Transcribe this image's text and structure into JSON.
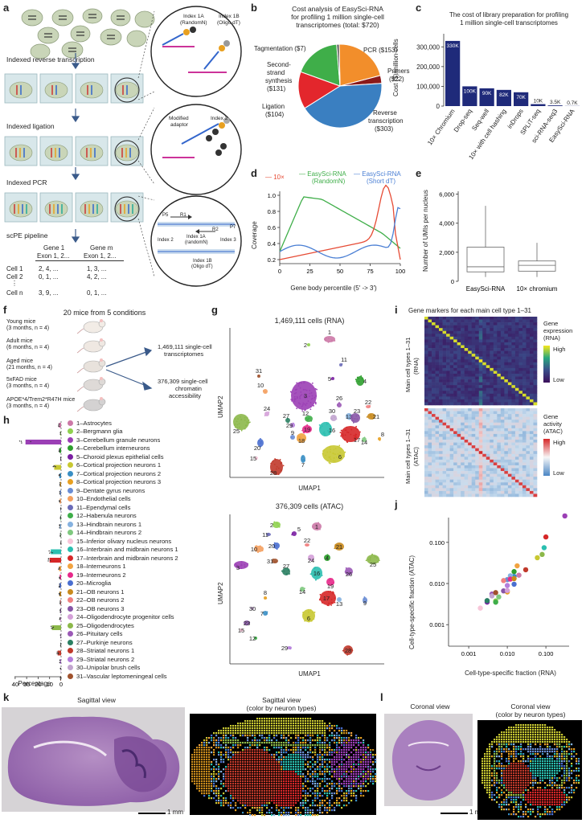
{
  "panel_labels": {
    "a": "a",
    "b": "b",
    "c": "c",
    "d": "d",
    "e": "e",
    "f": "f",
    "g": "g",
    "h": "h",
    "i": "i",
    "j": "j",
    "k": "k",
    "l": "l"
  },
  "panel_a": {
    "steps": [
      "Indexed reverse transcription",
      "Indexed ligation",
      "Indexed PCR",
      "scPE pipeline"
    ],
    "zoom1": {
      "index1a": "Index 1A",
      "index1a_sub": "(RandomN)",
      "index1b": "Index 1B",
      "index1b_sub": "(Oligo dT)",
      "n_letter": "N",
      "t_letter": "T",
      "a_letter": "A"
    },
    "zoom2": {
      "modified": "Modified",
      "adaptor": "adaptor",
      "index2": "Index 2"
    },
    "zoom3": {
      "p5": "P5",
      "r1": "R1",
      "r2": "R2",
      "p7": "P7",
      "index2": "Index 2",
      "index1a": "Index 1A",
      "index1a_sub": "(randomN)",
      "index3": "Index 3",
      "index1b": "Index 1B",
      "index1b_sub": "(Oligo dT)"
    },
    "matrix": {
      "gene1": "Gene 1",
      "genem": "Gene m",
      "exon1": "Exon 1, 2...",
      "exonm": "Exon 1, 2...",
      "rows": [
        {
          "cell": "Cell 1",
          "v1": "2, 4, ...",
          "vm": "1, 3, ..."
        },
        {
          "cell": "Cell 2",
          "v1": "0, 1, ...",
          "vm": "4, 2, ..."
        },
        {
          "cell": "Cell n",
          "v1": "3, 9, ...",
          "vm": "0, 1, ..."
        }
      ],
      "vdots": "⋮"
    }
  },
  "panel_b": {
    "title_lines": [
      "Cost analysis of EasySci-RNA",
      "for profiling 1 million single-cell",
      "transcriptomes (total: $720)"
    ],
    "slices": [
      {
        "label": "PCR ($153)",
        "value": 153,
        "color": "#f28e2b"
      },
      {
        "label": "Primers ($22)",
        "value": 22,
        "color": "#8b1a1a"
      },
      {
        "label": "Reverse transcription ($303)",
        "value": 303,
        "color": "#3a7fc1"
      },
      {
        "label": "Ligation ($104)",
        "value": 104,
        "color": "#e3262c"
      },
      {
        "label": "Second-strand synthesis ($131)",
        "value": 131,
        "color": "#3fae49"
      },
      {
        "label": "Tagmentation ($7)",
        "value": 7,
        "color": "#555555"
      }
    ],
    "labels": {
      "pcr": "PCR ($153)",
      "primers1": "Primers",
      "primers2": "($22)",
      "rt1": "Reverse",
      "rt2": "transcription",
      "rt3": "($303)",
      "lig1": "Ligation",
      "lig2": "($104)",
      "sss1": "Second-",
      "sss2": "strand",
      "sss3": "synthesis",
      "sss4": "($131)",
      "tag": "Tagmentation ($7)"
    }
  },
  "panel_c": {
    "title_lines": [
      "The cost of library preparation for profiling",
      "1 million single-cell transcriptomes"
    ],
    "ylabel": "Cost ($)/million cells",
    "yticks": [
      "0",
      "100,000",
      "200,000",
      "300,000"
    ],
    "color": "#1f2a7a",
    "chart_data": {
      "type": "bar",
      "categories": [
        "10× Chromium",
        "Drop-seq",
        "Seq-well",
        "10× with cell hashing",
        "inDrops",
        "SPLiT-seq",
        "sci-RNA-seq3",
        "EasySci-RNA"
      ],
      "values": [
        330000,
        100000,
        90000,
        82000,
        70000,
        10000,
        3500,
        700
      ],
      "value_labels": [
        "330K",
        "100K",
        "90K",
        "82K",
        "70K",
        "10K",
        "3.5K",
        "0.7K"
      ],
      "ylim": [
        0,
        350000
      ]
    }
  },
  "panel_d": {
    "legend": [
      "10×",
      "EasySci-RNA (RandomN)",
      "EasySci-RNA (Short dT)"
    ],
    "legend_lines": {
      "l1": "10×",
      "l2a": "EasySci-RNA",
      "l2b": "(RandomN)",
      "l3a": "EasySci-RNA",
      "l3b": "(Short dT)"
    },
    "ylabel": "Coverage",
    "xlabel": "Gene body percentile (5′ -> 3′)",
    "xticks": [
      "0",
      "25",
      "50",
      "75",
      "100"
    ],
    "yticks": [
      "0.2",
      "0.4",
      "0.6",
      "0.8",
      "1.0"
    ],
    "colors": {
      "tenx": "#e64b35",
      "random": "#3fae49",
      "shortdt": "#4a7fd4"
    }
  },
  "panel_e": {
    "ylabel": "Number of UMIs per nucleus",
    "yticks": [
      "0",
      "2,000",
      "4,000",
      "6,000"
    ],
    "xlabels": [
      "EasySci-RNA",
      "10× chromium"
    ],
    "chart_data": {
      "type": "box",
      "boxes": [
        {
          "name": "EasySci-RNA",
          "min": 300,
          "q1": 650,
          "median": 1000,
          "q3": 2350,
          "max": 5200
        },
        {
          "name": "10× chromium",
          "min": 300,
          "q1": 700,
          "median": 1100,
          "q3": 1400,
          "max": 2650
        }
      ],
      "ylim": [
        0,
        6200
      ]
    }
  },
  "panel_f": {
    "title": "20 mice from 5 conditions",
    "groups": [
      {
        "name": "Young mice",
        "detail": "(3 months, n = 4)"
      },
      {
        "name": "Adult mice",
        "detail": "(6 months, n = 4)"
      },
      {
        "name": "Aged mice",
        "detail": "(21 months, n = 4)"
      },
      {
        "name": "5xFAD mice",
        "detail": "(3 months, n = 4)"
      },
      {
        "name": "APOE*4/Trem2*R47H mice",
        "detail": "(3 months, n = 4)"
      }
    ],
    "out1a": "1,469,111 single-cell",
    "out1b": "transcriptomes",
    "out2a": "376,309 single-cell",
    "out2b": "chromatin",
    "out2c": "accessibility"
  },
  "panel_g": {
    "rna_title": "1,469,111 cells (RNA)",
    "atac_title": "376,309 cells (ATAC)",
    "xlabel": "UMAP1",
    "ylabel": "UMAP2"
  },
  "panel_h": {
    "xlabel": "Percentage",
    "xticks": [
      "40",
      "30",
      "20",
      "10",
      "0"
    ],
    "cell_types": [
      {
        "label": "1–Astrocytes",
        "color": "#cc79a7",
        "pct": 2.0
      },
      {
        "label": "2–Bergmann glia",
        "color": "#8fd14f",
        "pct": 0.5
      },
      {
        "label": "3–Cerebellum granule neurons",
        "color": "#9b3fb5",
        "pct": 31.0
      },
      {
        "label": "4–Cerebellum interneurons",
        "color": "#2e9e2e",
        "pct": 1.5
      },
      {
        "label": "5–Choroid plexus epithelial cells",
        "color": "#7a1fa2",
        "pct": 0.3
      },
      {
        "label": "6–Cortical projection neurons 1",
        "color": "#c8c832",
        "pct": 6.0
      },
      {
        "label": "7–Cortical projection neurons 2",
        "color": "#3a8fc4",
        "pct": 1.5
      },
      {
        "label": "8–Cortical projection neurons 3",
        "color": "#e8a020",
        "pct": 1.0
      },
      {
        "label": "9–Dentate gyrus neurons",
        "color": "#6a8dd4",
        "pct": 1.0
      },
      {
        "label": "10–Endothelial cells",
        "color": "#f4a060",
        "pct": 1.2
      },
      {
        "label": "11–Ependymal cells",
        "color": "#6b6bb8",
        "pct": 0.3
      },
      {
        "label": "12–Habenula neurons",
        "color": "#3fae49",
        "pct": 0.5
      },
      {
        "label": "13–Hindbrain neurons 1",
        "color": "#86b2e0",
        "pct": 1.2
      },
      {
        "label": "14–Hindbrain neurons 2",
        "color": "#7fc97f",
        "pct": 0.6
      },
      {
        "label": "15–Inferior olivary nucleus neurons",
        "color": "#f7c6d9",
        "pct": 0.2
      },
      {
        "label": "16–Interbrain and midbrain neurons 1",
        "color": "#2bbfb0",
        "pct": 9.0
      },
      {
        "label": "17–Interbrain and midbrain neurons 2",
        "color": "#d62728",
        "pct": 10.0
      },
      {
        "label": "18–Interneurons 1",
        "color": "#f1a340",
        "pct": 1.8
      },
      {
        "label": "19–Interneurons 2",
        "color": "#e7298a",
        "pct": 1.2
      },
      {
        "label": "20–Microglia",
        "color": "#4a6fd0",
        "pct": 1.5
      },
      {
        "label": "21–OB neurons 1",
        "color": "#c98a1c",
        "pct": 1.5
      },
      {
        "label": "22–OB neurons 2",
        "color": "#f08080",
        "pct": 0.8
      },
      {
        "label": "23–OB neurons 3",
        "color": "#8856a7",
        "pct": 0.8
      },
      {
        "label": "24–Oligodendrocyte progenitor cells",
        "color": "#d4a0d8",
        "pct": 1.0
      },
      {
        "label": "25–Oligodendrocytes",
        "color": "#8cb84a",
        "pct": 8.0
      },
      {
        "label": "26–Pituitary cells",
        "color": "#9b59b6",
        "pct": 0.4
      },
      {
        "label": "27–Purkinje neurons",
        "color": "#2a7f62",
        "pct": 0.3
      },
      {
        "label": "28–Striatal neurons 1",
        "color": "#c0392b",
        "pct": 3.0
      },
      {
        "label": "29–Striatal neurons 2",
        "color": "#b57edc",
        "pct": 1.0
      },
      {
        "label": "30–Unipolar brush cells",
        "color": "#c2a5cf",
        "pct": 0.4
      },
      {
        "label": "31–Vascular leptomeningeal cells",
        "color": "#a0522d",
        "pct": 0.5
      }
    ]
  },
  "panel_i": {
    "title": "Gene markers for each main cell type 1–31",
    "rna_ylabel1": "Main cell types 1–31",
    "rna_ylabel2": "(RNA)",
    "atac_ylabel1": "Main cell types 1–31",
    "atac_ylabel2": "(ATAC)",
    "rna_legend": [
      "Gene",
      "expression",
      "(RNA)"
    ],
    "atac_legend": [
      "Gene",
      "activity",
      "(ATAC)"
    ],
    "high": "High",
    "low": "Low"
  },
  "panel_j": {
    "xlabel": "Cell-type-specific fraction (RNA)",
    "ylabel": "Cell-type-specific fraction (ATAC)",
    "ticks": [
      "0.001",
      "0.010",
      "0.100"
    ]
  },
  "panel_k": {
    "left_title": "Sagittal view",
    "right_title1": "Sagittal view",
    "right_title2": "(color by neuron types)",
    "scale": "1 mm"
  },
  "panel_l": {
    "left_title": "Coronal  view",
    "right_title1": "Coronal  view",
    "right_title2": "(color by neuron types)",
    "scale": "1 mm"
  }
}
